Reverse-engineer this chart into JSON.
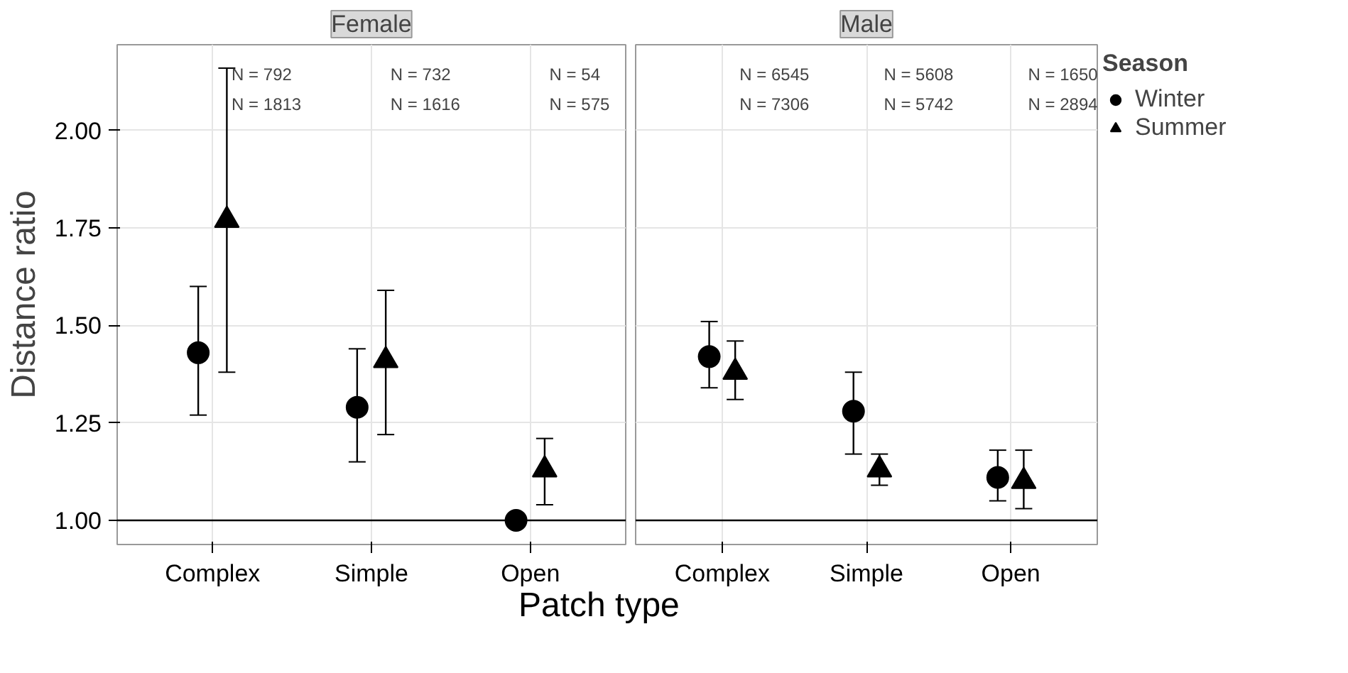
{
  "chart_data": [
    {
      "type": "scatter",
      "title": "Female",
      "ylabel": "Distance ratio",
      "xlabel": "Patch type",
      "categories": [
        "Complex",
        "Simple",
        "Open"
      ],
      "ylim": [
        0.938,
        2.22
      ],
      "yticks": [
        {
          "value": 1,
          "label": "1.00"
        },
        {
          "value": 1.25,
          "label": "1.25"
        },
        {
          "value": 1.5,
          "label": "1.50"
        },
        {
          "value": 1.75,
          "label": "1.75"
        },
        {
          "value": 2,
          "label": "2.00"
        }
      ],
      "grid": true,
      "legend": false,
      "series": [
        {
          "color": "#000000",
          "marker": "circle",
          "values": [
            1.43,
            1.29,
            1.0
          ],
          "errors": [
            [
              1.27,
              1.6
            ],
            [
              1.15,
              1.44
            ],
            null
          ]
        },
        {
          "color": "#000000",
          "marker": "triangle",
          "values": [
            1.77,
            1.41,
            1.13
          ],
          "errors": [
            [
              1.38,
              2.16
            ],
            [
              1.22,
              1.59
            ],
            [
              1.04,
              1.21
            ]
          ]
        }
      ],
      "ref_lines": [
        {
          "axis": "y",
          "value": 1,
          "color": "#000000"
        }
      ],
      "annotations": [
        "N = 792",
        "N = 1813",
        "N = 732",
        "N = 1616",
        "N = 54",
        "N = 575"
      ]
    },
    {
      "type": "scatter",
      "title": "Male",
      "categories": [
        "Complex",
        "Simple",
        "Open"
      ],
      "ylim": [
        0.938,
        2.22
      ],
      "yticks": [
        1,
        1.25,
        1.5,
        1.75,
        2
      ],
      "tick_labels": "x",
      "grid": true,
      "legend": "right",
      "legend_title": "Season",
      "series": [
        {
          "name": "Winter",
          "color": "#000000",
          "marker": "circle",
          "values": [
            1.42,
            1.28,
            1.11
          ],
          "errors": [
            [
              1.34,
              1.51
            ],
            [
              1.17,
              1.38
            ],
            [
              1.05,
              1.18
            ]
          ]
        },
        {
          "name": "Summer",
          "color": "#000000",
          "marker": "triangle",
          "values": [
            1.38,
            1.13,
            1.1
          ],
          "errors": [
            [
              1.31,
              1.46
            ],
            [
              1.09,
              1.17
            ],
            [
              1.03,
              1.18
            ]
          ]
        }
      ],
      "ref_lines": [
        {
          "axis": "y",
          "value": 1,
          "color": "#000000"
        }
      ],
      "annotations": [
        "N = 6545",
        "N = 7306",
        "N = 5608",
        "N = 5742",
        "N = 1650",
        "N = 2894"
      ]
    }
  ]
}
